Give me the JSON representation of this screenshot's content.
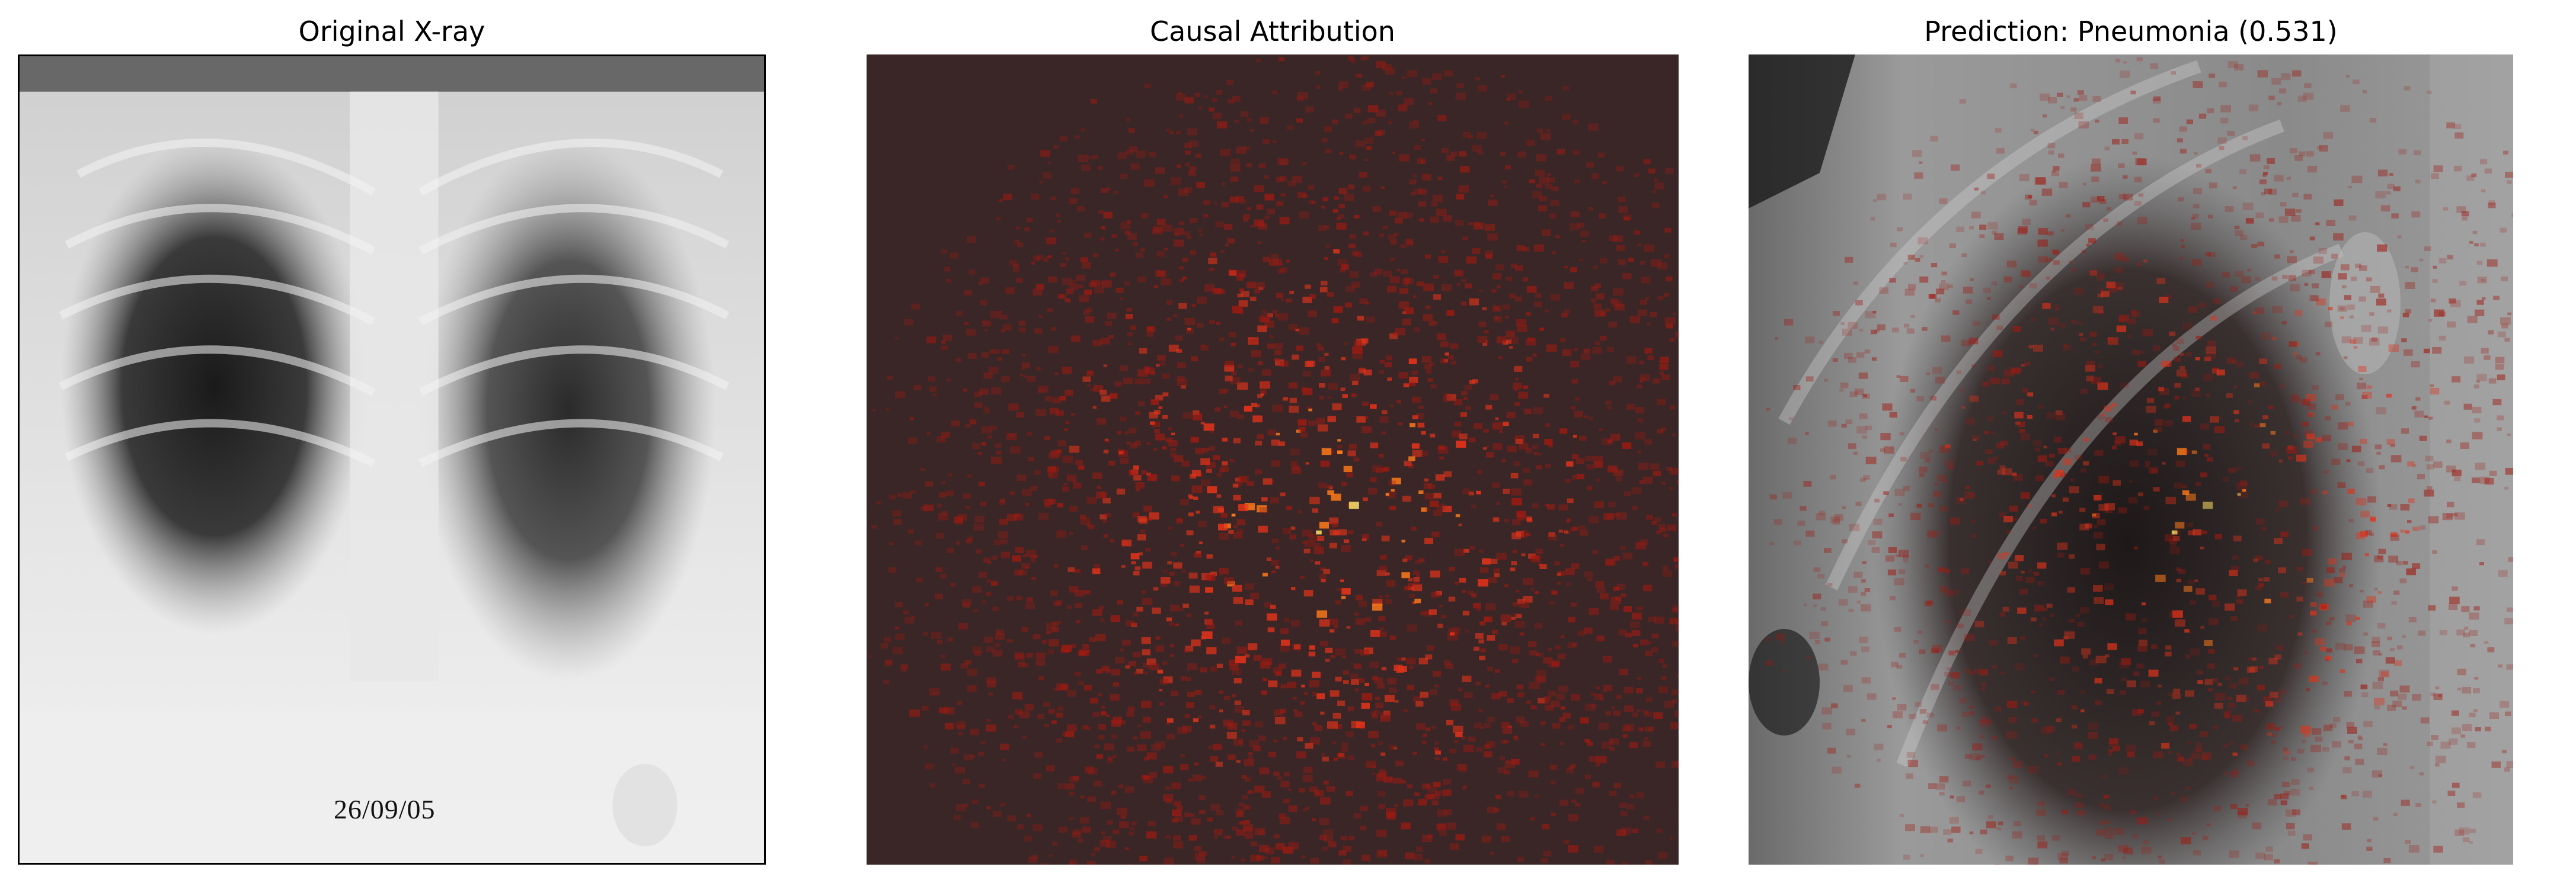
{
  "figure": {
    "panels": [
      {
        "id": "original",
        "title": "Original X-ray",
        "stamp_text": "26/09/05"
      },
      {
        "id": "attribution",
        "title": "Causal Attribution",
        "colormap": "hot"
      },
      {
        "id": "overlay",
        "title": "Prediction: Pneumonia (0.531)",
        "prediction_label": "Pneumonia",
        "prediction_score": 0.531
      }
    ],
    "colors": {
      "background": "#ffffff",
      "attribution_base": "#3a2626",
      "attribution_hot": "#ff3a10",
      "attribution_peak": "#ffe066"
    }
  }
}
